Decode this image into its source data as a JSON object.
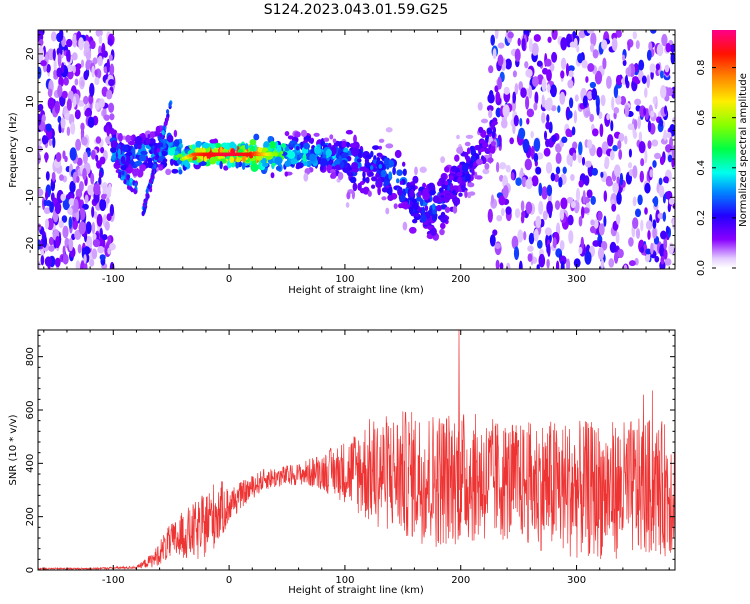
{
  "title": "S124.2023.043.01.59.G25",
  "chart_data": [
    {
      "type": "heatmap",
      "xlabel": "Height of straight line (km)",
      "ylabel": "Frequency (Hz)",
      "xlim": [
        -165,
        385
      ],
      "ylim": [
        -25,
        25
      ],
      "x_ticks": [
        -100,
        0,
        100,
        200,
        300
      ],
      "y_ticks": [
        -20,
        -10,
        0,
        10,
        20
      ],
      "colorbar": {
        "label": "Normalized spectral amplitude",
        "range": [
          0.0,
          0.95
        ],
        "ticks": [
          0.0,
          0.2,
          0.4,
          0.6,
          0.8
        ],
        "tick_labels": [
          "0.0",
          "0.2",
          "0.4",
          "0.6",
          "0.8"
        ]
      },
      "ridge_trace": {
        "x": [
          -100,
          -90,
          -75,
          -60,
          -50,
          -40,
          -30,
          -20,
          0,
          20,
          50,
          80,
          100,
          120,
          140,
          160,
          170,
          180,
          190,
          200,
          210,
          220,
          230
        ],
        "y": [
          0,
          -2,
          -1,
          0,
          0,
          -2,
          -1,
          -1,
          -1,
          -1,
          -1,
          -1,
          -2,
          -3,
          -5,
          -11,
          -13,
          -12,
          -9,
          -6,
          -2,
          1,
          5
        ],
        "peak_amplitude": [
          0.35,
          0.3,
          0.35,
          0.35,
          0.4,
          0.6,
          0.85,
          0.9,
          0.95,
          0.9,
          0.45,
          0.4,
          0.35,
          0.3,
          0.3,
          0.3,
          0.3,
          0.3,
          0.25,
          0.25,
          0.25,
          0.2,
          0.2
        ]
      }
    },
    {
      "type": "line",
      "color": "#ee3333",
      "xlabel": "Height of straight line (km)",
      "ylabel": "SNR (10 * v/v)",
      "xlim": [
        -165,
        385
      ],
      "ylim": [
        0,
        900
      ],
      "x_ticks": [
        -100,
        0,
        100,
        200,
        300
      ],
      "y_ticks": [
        0,
        200,
        400,
        600,
        800
      ],
      "envelope": {
        "x": [
          -165,
          -120,
          -80,
          -65,
          -55,
          -40,
          -25,
          -10,
          0,
          10,
          30,
          60,
          80,
          100,
          120,
          150,
          180,
          200,
          220,
          250,
          270,
          300,
          330,
          360,
          385
        ],
        "mean": [
          5,
          5,
          10,
          40,
          90,
          130,
          150,
          220,
          240,
          280,
          340,
          360,
          370,
          370,
          370,
          360,
          340,
          350,
          340,
          330,
          320,
          300,
          300,
          310,
          300
        ],
        "half_range": [
          3,
          3,
          5,
          30,
          60,
          90,
          120,
          130,
          70,
          50,
          40,
          40,
          70,
          120,
          200,
          240,
          260,
          250,
          240,
          220,
          250,
          260,
          260,
          260,
          250
        ]
      }
    }
  ]
}
